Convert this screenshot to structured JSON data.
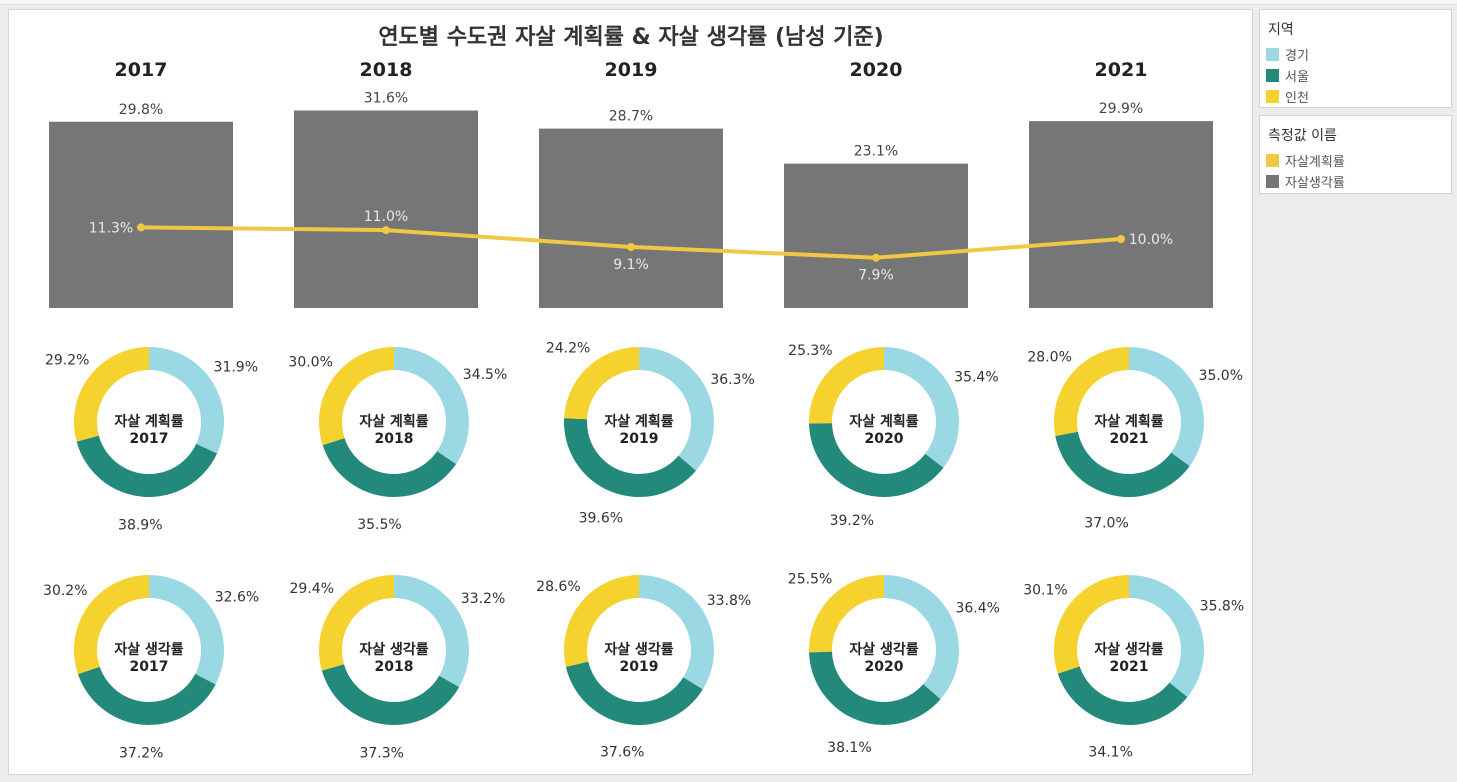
{
  "title": "연도별 수도권 자살 계획률 & 자살 생각률 (남성 기준)",
  "colors": {
    "bar": "#767676",
    "line": "#f0c844",
    "경기": "#9ad9e4",
    "서울": "#22897b",
    "인천": "#f6d22f",
    "자살계획률": "#f0c844",
    "자살생각률": "#767676"
  },
  "legend_region": {
    "title": "지역",
    "items": [
      {
        "label": "경기",
        "color": "#9ad9e4"
      },
      {
        "label": "서울",
        "color": "#22897b"
      },
      {
        "label": "인천",
        "color": "#f6d22f"
      }
    ]
  },
  "legend_measure": {
    "title": "측정값 이름",
    "items": [
      {
        "label": "자살계획률",
        "color": "#f0c844"
      },
      {
        "label": "자살생각률",
        "color": "#767676"
      }
    ]
  },
  "chart_data": [
    {
      "type": "bar",
      "categories": [
        "2017",
        "2018",
        "2019",
        "2020",
        "2021"
      ],
      "series": [
        {
          "name": "자살생각률",
          "values": [
            29.8,
            31.6,
            28.7,
            23.1,
            29.9
          ],
          "labels": [
            "29.8%",
            "31.6%",
            "28.7%",
            "23.1%",
            "29.9%"
          ]
        },
        {
          "name": "자살계획률",
          "values": [
            11.3,
            11.0,
            9.1,
            7.9,
            10.0
          ],
          "labels": [
            "11.3%",
            "11.0%",
            "9.1%",
            "7.9%",
            "10.0%"
          ]
        }
      ]
    },
    {
      "type": "pie",
      "categories": [
        "경기",
        "서울",
        "인천"
      ],
      "center_label": "자살 계획률",
      "charts": [
        {
          "year": "2017",
          "values": [
            31.9,
            38.9,
            29.2
          ],
          "labels": [
            "31.9%",
            "38.9%",
            "29.2%"
          ]
        },
        {
          "year": "2018",
          "values": [
            34.5,
            35.5,
            30.0
          ],
          "labels": [
            "34.5%",
            "35.5%",
            "30.0%"
          ]
        },
        {
          "year": "2019",
          "values": [
            36.3,
            39.6,
            24.2
          ],
          "labels": [
            "36.3%",
            "39.6%",
            "24.2%"
          ]
        },
        {
          "year": "2020",
          "values": [
            35.4,
            39.2,
            25.3
          ],
          "labels": [
            "35.4%",
            "39.2%",
            "25.3%"
          ]
        },
        {
          "year": "2021",
          "values": [
            35.0,
            37.0,
            28.0
          ],
          "labels": [
            "35.0%",
            "37.0%",
            "28.0%"
          ]
        }
      ]
    },
    {
      "type": "pie",
      "categories": [
        "경기",
        "서울",
        "인천"
      ],
      "center_label": "자살 생각률",
      "charts": [
        {
          "year": "2017",
          "values": [
            32.6,
            37.2,
            30.2
          ],
          "labels": [
            "32.6%",
            "37.2%",
            "30.2%"
          ]
        },
        {
          "year": "2018",
          "values": [
            33.2,
            37.3,
            29.4
          ],
          "labels": [
            "33.2%",
            "37.3%",
            "29.4%"
          ]
        },
        {
          "year": "2019",
          "values": [
            33.8,
            37.6,
            28.6
          ],
          "labels": [
            "33.8%",
            "37.6%",
            "28.6%"
          ]
        },
        {
          "year": "2020",
          "values": [
            36.4,
            38.1,
            25.5
          ],
          "labels": [
            "36.4%",
            "38.1%",
            "25.5%"
          ]
        },
        {
          "year": "2021",
          "values": [
            35.8,
            34.1,
            30.1
          ],
          "labels": [
            "35.8%",
            "34.1%",
            "30.1%"
          ]
        }
      ]
    }
  ]
}
